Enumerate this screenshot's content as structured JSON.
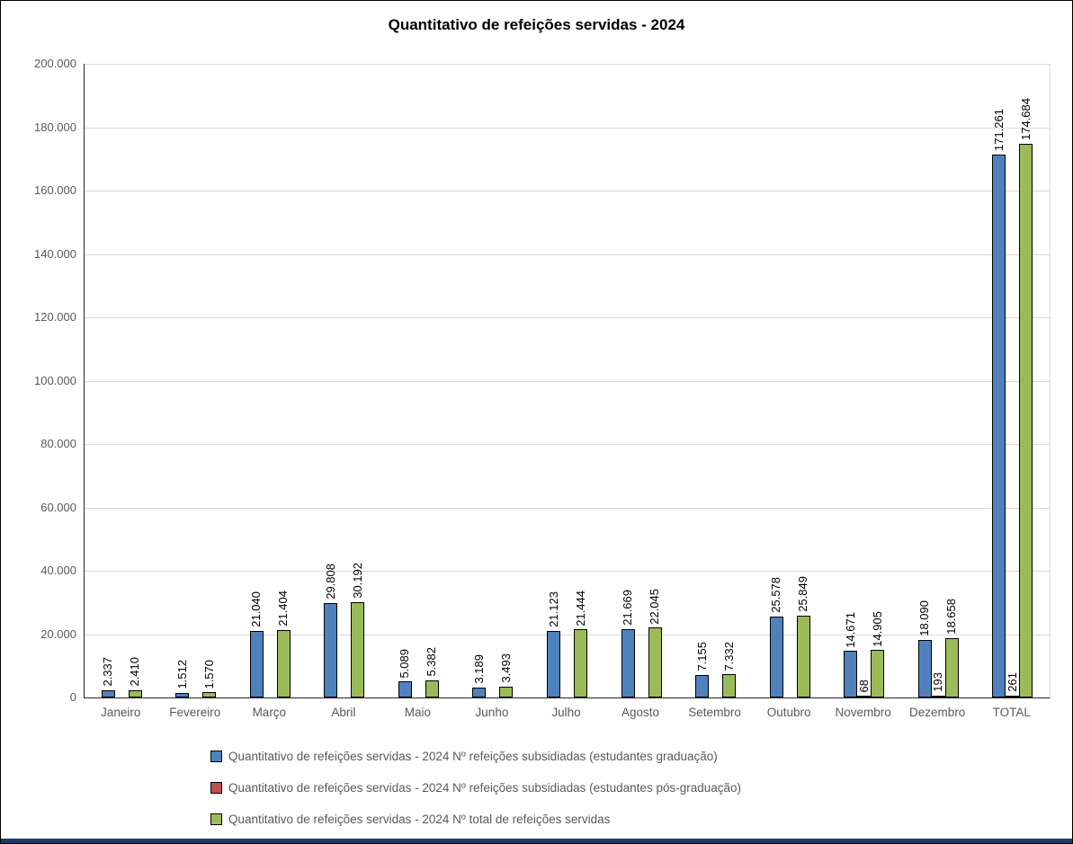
{
  "chart_data": {
    "type": "bar",
    "title": "Quantitativo de refeições servidas - 2024",
    "categories": [
      "Janeiro",
      "Fevereiro",
      "Março",
      "Abril",
      "Maio",
      "Junho",
      "Julho",
      "Agosto",
      "Setembro",
      "Outubro",
      "Novembro",
      "Dezembro",
      "TOTAL"
    ],
    "series": [
      {
        "name": "Quantitativo de refeições servidas - 2024 Nº refeições subsidiadas (estudantes graduação)",
        "color": "#4F81BD",
        "values": [
          2337,
          1512,
          21040,
          29808,
          5089,
          3189,
          21123,
          21669,
          7155,
          25578,
          14671,
          18090,
          171261
        ],
        "labels": [
          "2.337",
          "1.512",
          "21.040",
          "29.808",
          "5.089",
          "3.189",
          "21.123",
          "21.669",
          "7.155",
          "25.578",
          "14.671",
          "18.090",
          "171.261"
        ]
      },
      {
        "name": "Quantitativo de refeições servidas - 2024 Nº refeições subsidiadas (estudantes pós-graduação)",
        "color": "#C0504D",
        "values": [
          null,
          null,
          null,
          null,
          null,
          null,
          null,
          null,
          null,
          null,
          68,
          193,
          261
        ],
        "labels": [
          null,
          null,
          null,
          null,
          null,
          null,
          null,
          null,
          null,
          null,
          "68",
          "193",
          "261"
        ]
      },
      {
        "name": "Quantitativo de refeições servidas - 2024 Nº total de refeições servidas",
        "color": "#9BBB59",
        "values": [
          2410,
          1570,
          21404,
          30192,
          5382,
          3493,
          21444,
          22045,
          7332,
          25849,
          14905,
          18658,
          174684
        ],
        "labels": [
          "2.410",
          "1.570",
          "21.404",
          "30.192",
          "5.382",
          "3.493",
          "21.444",
          "22.045",
          "7.332",
          "25.849",
          "14.905",
          "18.658",
          "174.684"
        ]
      }
    ],
    "ylim": [
      0,
      200000
    ],
    "ytick_step": 20000,
    "ytick_labels": [
      "0",
      "20.000",
      "40.000",
      "60.000",
      "80.000",
      "100.000",
      "120.000",
      "140.000",
      "160.000",
      "180.000",
      "200.000"
    ],
    "grid": true,
    "legend_position": "bottom",
    "data_label_rotation": 90
  },
  "colors": {
    "gridline": "#D9D9D9",
    "axis": "#262626",
    "tick_label": "#595959",
    "bar_border": "#000000",
    "bottom_accent": "#1F3864"
  }
}
